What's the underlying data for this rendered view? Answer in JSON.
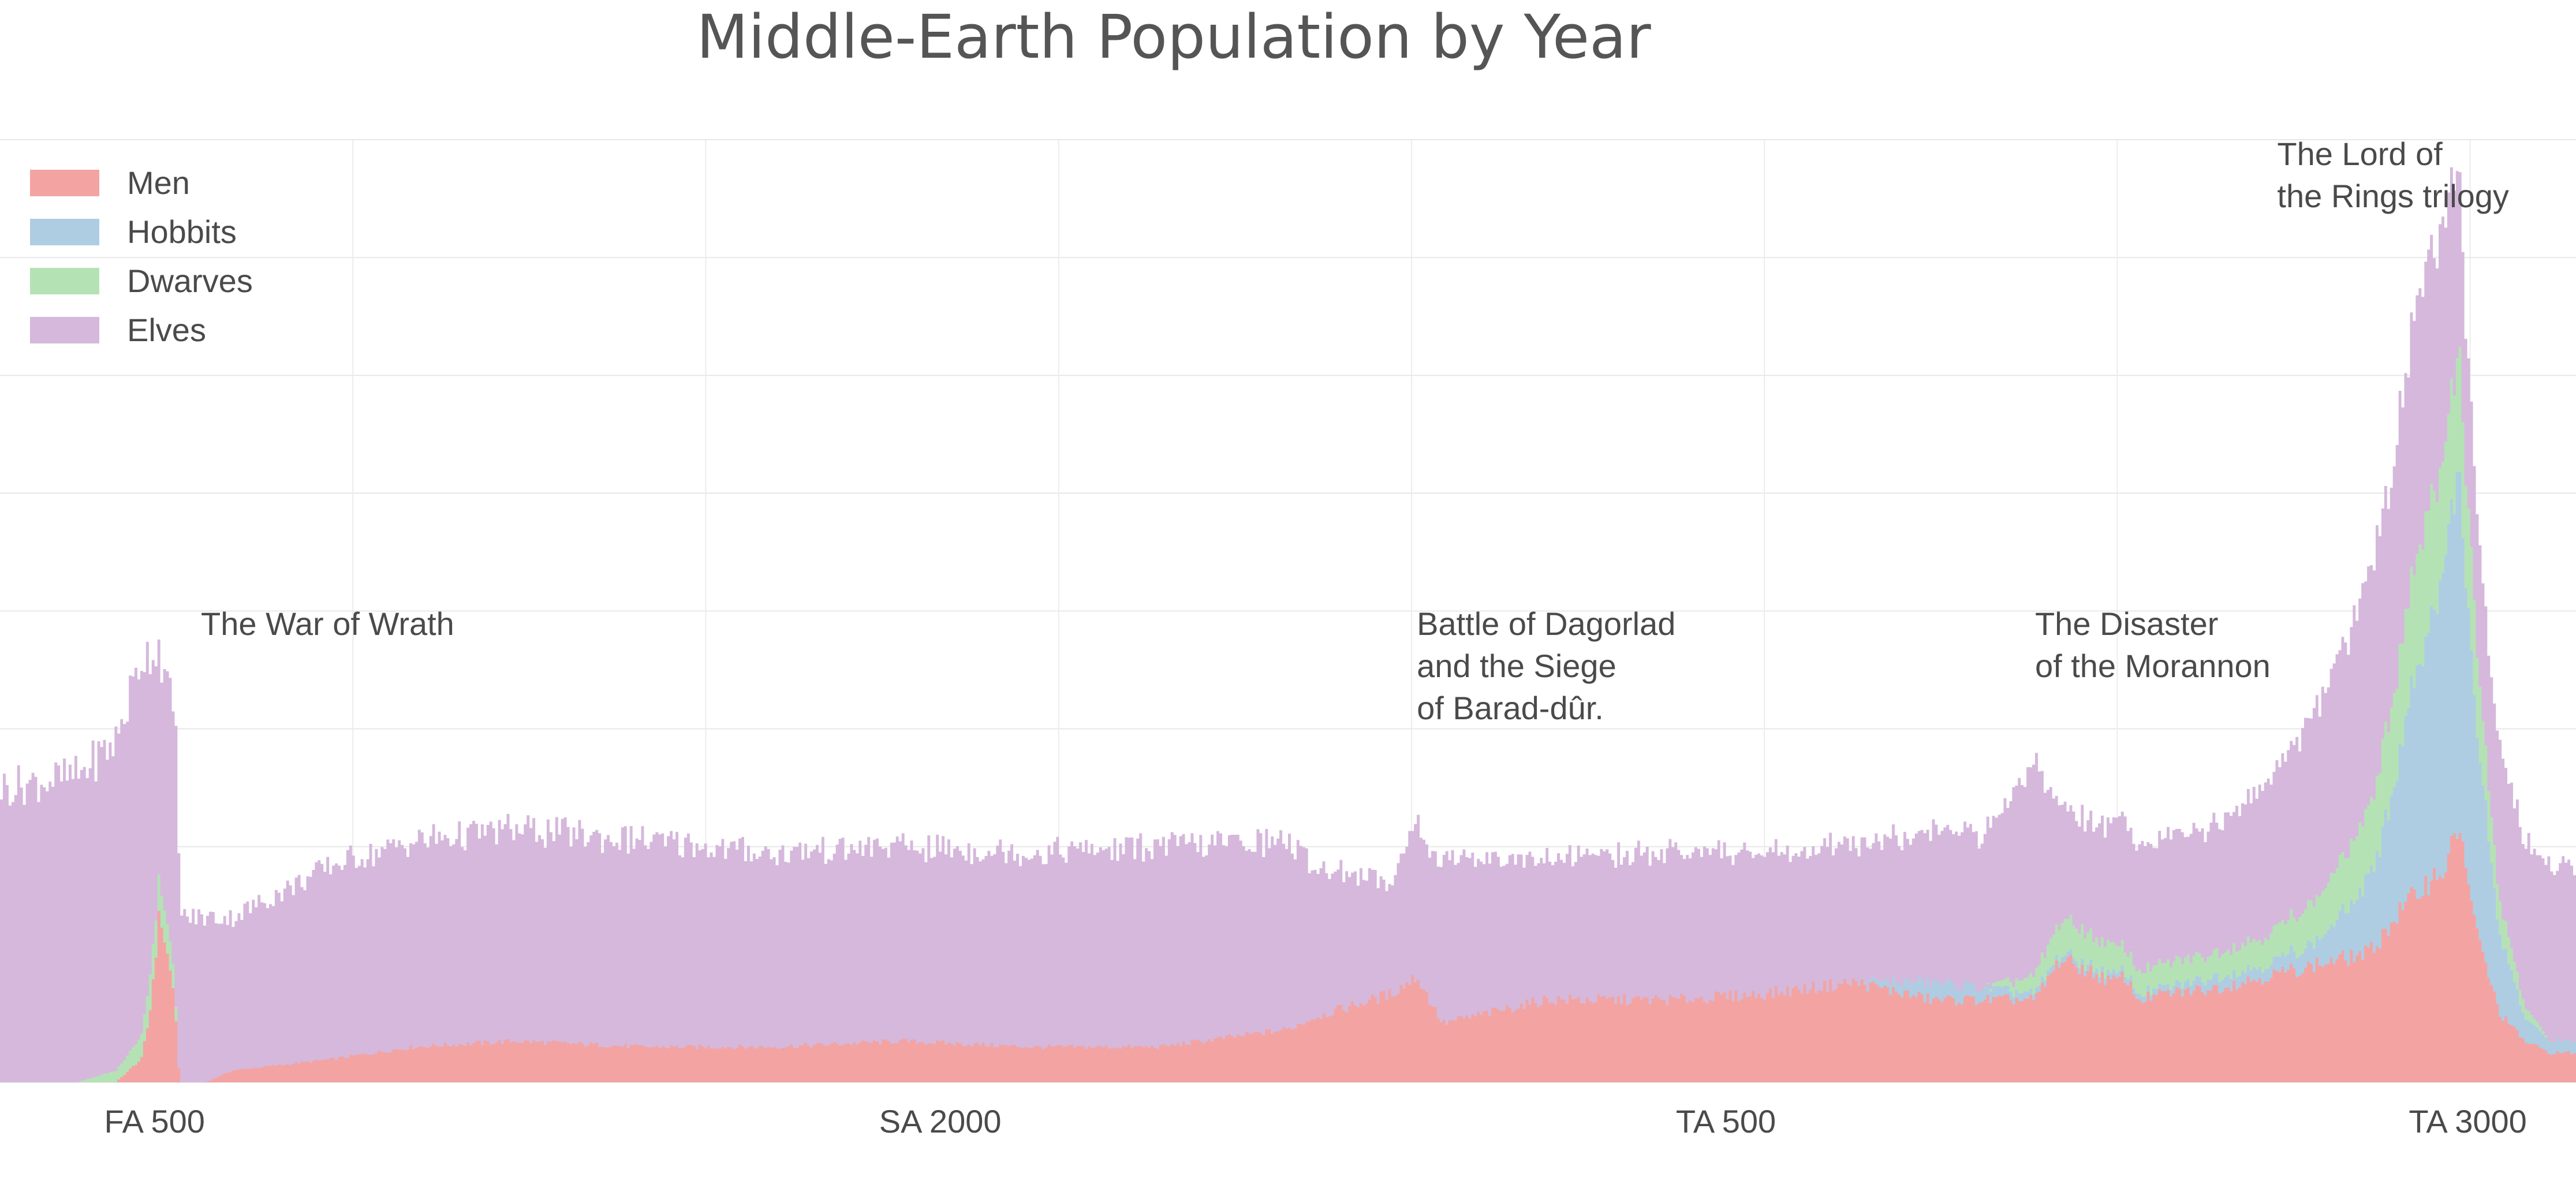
{
  "chart_data": {
    "type": "area",
    "stacked": true,
    "title": "Middle-Earth Population by Year",
    "xlabel": "",
    "ylabel": "",
    "x_ticks": [
      "FA 500",
      "SA 2000",
      "TA 500",
      "TA 3000"
    ],
    "x_tick_positions": [
      0.06,
      0.365,
      0.67,
      0.958
    ],
    "grid": true,
    "legend_position": "top-left",
    "ylim": [
      0,
      8
    ],
    "x_knots": [
      0.0,
      0.03,
      0.045,
      0.055,
      0.058,
      0.062,
      0.068,
      0.069,
      0.07,
      0.08,
      0.09,
      0.13,
      0.16,
      0.2,
      0.25,
      0.3,
      0.35,
      0.4,
      0.45,
      0.5,
      0.51,
      0.54,
      0.55,
      0.555,
      0.56,
      0.6,
      0.65,
      0.685,
      0.72,
      0.75,
      0.77,
      0.79,
      0.8,
      0.82,
      0.825,
      0.83,
      0.84,
      0.86,
      0.88,
      0.9,
      0.92,
      0.93,
      0.94,
      0.95,
      0.955,
      0.96,
      0.965,
      0.97,
      0.98,
      0.99,
      1.0
    ],
    "series": [
      {
        "name": "Men",
        "color": "#f4a3a3",
        "values": [
          0,
          0,
          0,
          0.2,
          0.55,
          1.45,
          0.7,
          0.2,
          0,
          0,
          0.1,
          0.2,
          0.3,
          0.35,
          0.3,
          0.3,
          0.35,
          0.3,
          0.3,
          0.45,
          0.55,
          0.75,
          0.9,
          0.7,
          0.5,
          0.7,
          0.7,
          0.75,
          0.85,
          0.7,
          0.7,
          0.7,
          1.05,
          0.85,
          0.9,
          0.7,
          0.75,
          0.8,
          0.9,
          1.0,
          1.1,
          1.4,
          1.65,
          1.85,
          2.2,
          1.4,
          1.0,
          0.6,
          0.35,
          0.25,
          0.25
        ]
      },
      {
        "name": "Hobbits",
        "color": "#aecde3",
        "values": [
          0,
          0,
          0,
          0,
          0,
          0,
          0,
          0,
          0,
          0,
          0,
          0,
          0,
          0,
          0,
          0,
          0,
          0,
          0,
          0,
          0,
          0,
          0,
          0,
          0,
          0,
          0,
          0,
          0,
          0.15,
          0.1,
          0.05,
          0.05,
          0.05,
          0.05,
          0.05,
          0.05,
          0.1,
          0.1,
          0.2,
          0.6,
          1.2,
          2.0,
          2.6,
          3.0,
          1.9,
          1.3,
          0.7,
          0.2,
          0.1,
          0.1
        ]
      },
      {
        "name": "Dwarves",
        "color": "#b5e2b5",
        "values": [
          0,
          0,
          0.1,
          0.2,
          0.3,
          0.3,
          0.2,
          0,
          0,
          0,
          0,
          0,
          0,
          0,
          0,
          0,
          0,
          0,
          0,
          0,
          0,
          0,
          0,
          0,
          0,
          0,
          0,
          0,
          0,
          0,
          0,
          0.15,
          0.3,
          0.25,
          0.2,
          0.2,
          0.2,
          0.2,
          0.25,
          0.35,
          0.6,
          0.8,
          1.0,
          1.0,
          1.0,
          0.8,
          0.5,
          0.3,
          0.1,
          0,
          0
        ]
      },
      {
        "name": "Elves",
        "color": "#d5b8dc",
        "values": [
          2.5,
          2.6,
          2.8,
          3.2,
          2.8,
          1.9,
          2.2,
          2.4,
          1.4,
          1.4,
          1.3,
          1.65,
          1.75,
          1.8,
          1.75,
          1.65,
          1.65,
          1.65,
          1.7,
          1.6,
          1.3,
          0.95,
          1.35,
          1.3,
          1.4,
          1.2,
          1.25,
          1.2,
          1.15,
          1.3,
          1.3,
          1.8,
          0.95,
          1.0,
          1.1,
          1.1,
          1.05,
          1.1,
          1.3,
          1.6,
          2.0,
          2.0,
          2.2,
          1.9,
          1.45,
          1.2,
          1.2,
          1.3,
          1.4,
          1.5,
          1.5
        ]
      }
    ],
    "annotations": [
      {
        "lines": [
          "The War of Wrath"
        ],
        "x": 0.078
      },
      {
        "lines": [
          "Battle of Dagorlad",
          "and the Siege",
          "of Barad-dûr."
        ],
        "x": 0.55
      },
      {
        "lines": [
          "The Disaster",
          "of the Morannon"
        ],
        "x": 0.79
      },
      {
        "lines": [
          "The Lord of",
          "the Rings trilogy"
        ],
        "x": 0.884
      }
    ]
  }
}
